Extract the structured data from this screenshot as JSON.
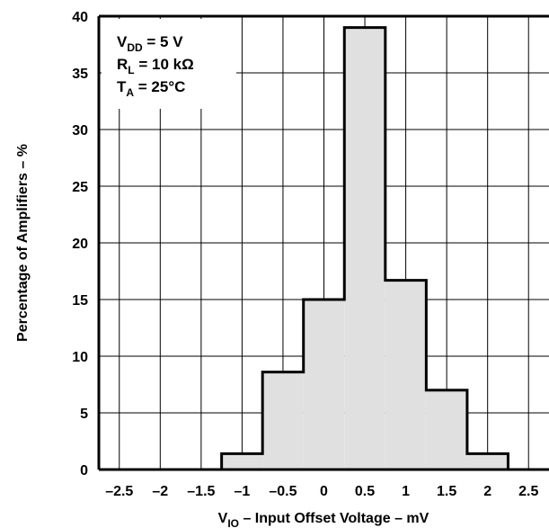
{
  "chart_data": {
    "type": "histogram",
    "bins": [
      {
        "x0": -1.25,
        "x1": -0.75,
        "value": 1.4
      },
      {
        "x0": -0.75,
        "x1": -0.25,
        "value": 8.6
      },
      {
        "x0": -0.25,
        "x1": 0.25,
        "value": 15.0
      },
      {
        "x0": 0.25,
        "x1": 0.75,
        "value": 39.0
      },
      {
        "x0": 0.75,
        "x1": 1.25,
        "value": 16.7
      },
      {
        "x0": 1.25,
        "x1": 1.75,
        "value": 7.0
      },
      {
        "x0": 1.75,
        "x1": 2.25,
        "value": 1.4
      }
    ],
    "xlim": [
      -2.75,
      2.75
    ],
    "ylim": [
      0,
      40
    ],
    "x_ticks": [
      -2.5,
      -2,
      -1.5,
      -1,
      -0.5,
      0,
      0.5,
      1,
      1.5,
      2,
      2.5
    ],
    "x_tick_labels": [
      "–2.5",
      "–2",
      "–1.5",
      "–1",
      "–0.5",
      "0",
      "0.5",
      "1",
      "1.5",
      "2",
      "2.5"
    ],
    "y_ticks": [
      0,
      5,
      10,
      15,
      20,
      25,
      30,
      35,
      40
    ],
    "y_tick_labels": [
      "0",
      "5",
      "10",
      "15",
      "20",
      "25",
      "30",
      "35",
      "40"
    ],
    "xlabel": {
      "main": "V",
      "sub": "IO",
      "rest": " – Input Offset Voltage – mV"
    },
    "ylabel": "Percentage of Amplifiers – %",
    "grid": true,
    "fill_color": "#e0e0e0",
    "conditions": [
      {
        "main": "V",
        "sub": "DD",
        "rest": " = 5 V"
      },
      {
        "main": "R",
        "sub": "L",
        "rest": " = 10 kΩ"
      },
      {
        "main": "T",
        "sub": "A",
        "rest": " = 25°C"
      }
    ]
  }
}
